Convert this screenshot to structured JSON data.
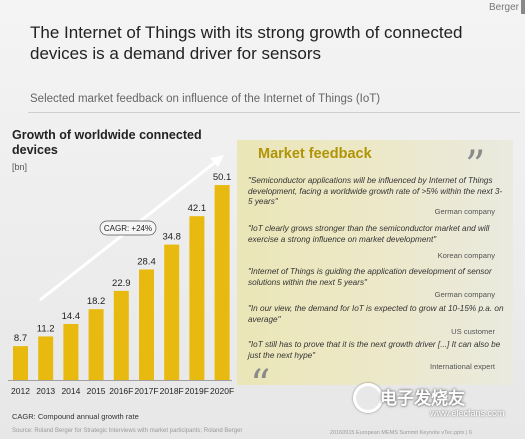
{
  "brand": "Berger",
  "title": "The Internet of Things with its strong growth of connected devices is a demand driver for sensors",
  "subtitle": "Selected market feedback on influence of the Internet of Things (IoT)",
  "chart_data": {
    "type": "bar",
    "title": "Growth of worldwide connected devices",
    "unit": "[bn]",
    "categories": [
      "2012",
      "2013",
      "2014",
      "2015",
      "2016F",
      "2017F",
      "2018F",
      "2019F",
      "2020F"
    ],
    "values": [
      8.7,
      11.2,
      14.4,
      18.2,
      22.9,
      28.4,
      34.8,
      42.1,
      50.1
    ],
    "value_labels": [
      "8.7",
      "11.2",
      "14.4",
      "18.2",
      "22.9",
      "28.4",
      "34.8",
      "42.1",
      "50.1"
    ],
    "ylim": [
      0,
      55
    ],
    "cagr_label": "CAGR: +24%",
    "bar_color": "#e8b90e",
    "grid": false,
    "legend": "none"
  },
  "footnote": "CAGR: Compound annual growth rate",
  "source": "Source: Roland Berger for Strategic Interviews with market participants; Roland Berger",
  "footer": "20160915 European MEMS Summit Keynote vTec.pptx | 6",
  "market_feedback": {
    "title": "Market feedback",
    "quotes": [
      {
        "text": "\"Semiconductor applications will be influenced by Internet of Things development, facing a worldwide growth rate of >5% within the next 3-5 years\"",
        "source": "German company"
      },
      {
        "text": "\"IoT clearly grows stronger than the semiconductor market and will exercise a strong influence on market development\"",
        "source": "Korean company"
      },
      {
        "text": "\"Internet of Things is guiding the application development of sensor solutions within the next 5 years\"",
        "source": "German company"
      },
      {
        "text": "\"In our view, the demand for IoT is expected to grow at 10-15% p.a. on average\"",
        "source": "US customer"
      },
      {
        "text": "\"IoT still has to prove that it is the next growth driver [...] It can also be just the next hype\"",
        "source": "International expert"
      }
    ]
  },
  "watermark": {
    "text": "电子发烧友",
    "url": "www.elecfans.com"
  },
  "colors": {
    "accent": "#b09406",
    "bar": "#e8b90e",
    "panel": "#ece8c6"
  }
}
